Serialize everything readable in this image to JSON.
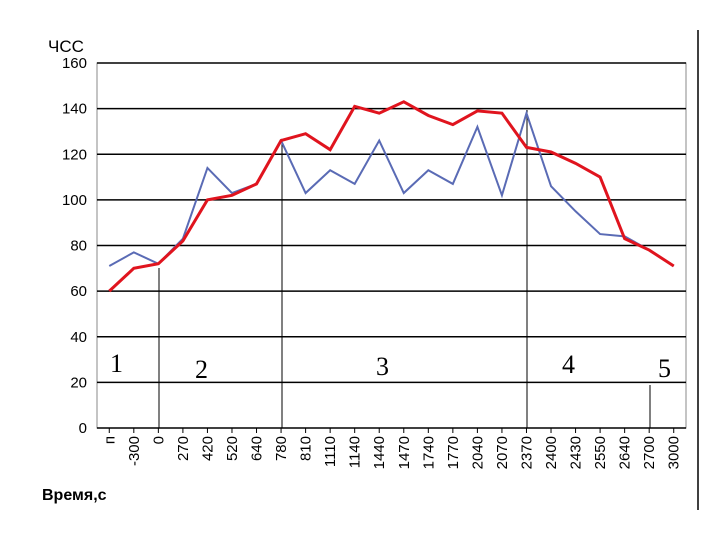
{
  "chart_data": {
    "type": "line",
    "y_label": "ЧСС",
    "x_label": "Время,с",
    "categories": [
      "п",
      "-300",
      "0",
      "270",
      "420",
      "520",
      "640",
      "780",
      "810",
      "1110",
      "1140",
      "1440",
      "1470",
      "1740",
      "1770",
      "2040",
      "2070",
      "2370",
      "2400",
      "2430",
      "2550",
      "2640",
      "2700",
      "3000"
    ],
    "series": [
      {
        "color": "#5a6bb5",
        "values": [
          71,
          77,
          72,
          83,
          114,
          103,
          107,
          126,
          103,
          113,
          107,
          126,
          103,
          113,
          107,
          132,
          102,
          138,
          106,
          95,
          85,
          84,
          78,
          71
        ]
      },
      {
        "color": "#e0141e",
        "values": [
          60,
          70,
          72,
          82,
          100,
          102,
          107,
          126,
          129,
          122,
          141,
          138,
          143,
          137,
          133,
          139,
          138,
          123,
          121,
          116,
          110,
          83,
          78,
          71
        ]
      }
    ],
    "ylim": [
      0,
      160
    ],
    "yticks": [
      0,
      20,
      40,
      60,
      80,
      100,
      120,
      140,
      160
    ],
    "grid": true,
    "annotations": [
      "1",
      "2",
      "3",
      "4",
      "5"
    ]
  }
}
